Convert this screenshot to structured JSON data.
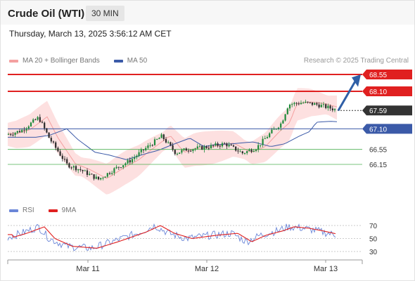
{
  "header": {
    "instrument": "Crude Oil (WTI)",
    "timeframe": "30 MIN"
  },
  "datetime": "Thursday, March 13, 2025 3:56:12 AM CET",
  "legend": {
    "ma20": "MA 20 + Bollinger Bands",
    "ma50": "MA 50",
    "ma20_color": "#f4a0a0",
    "ma50_color": "#3b5aa8"
  },
  "copyright": "Research © 2025 Trading Central",
  "levels": [
    {
      "label": "68.55",
      "value": 68.55,
      "style": "resistance"
    },
    {
      "label": "68.10",
      "value": 68.1,
      "style": "resistance"
    },
    {
      "label": "67.59",
      "value": 67.59,
      "style": "current"
    },
    {
      "label": "67.10",
      "value": 67.1,
      "style": "pivot"
    },
    {
      "label": "66.55",
      "value": 66.55,
      "style": "support"
    },
    {
      "label": "66.15",
      "value": 66.15,
      "style": "support"
    }
  ],
  "rsi_legend": {
    "rsi": "RSI",
    "ma": "9MA",
    "rsi_color": "#6a86d8",
    "ma_color": "#e02020"
  },
  "rsi_ticks": [
    "70",
    "50",
    "30"
  ],
  "x_labels": [
    "Mar 11",
    "Mar 12",
    "Mar 13"
  ],
  "colors": {
    "up": "#1e8a3a",
    "down": "#2a2a2a",
    "resistance": "#e02020",
    "pivot": "#3b5aa8",
    "support": "#4caf50",
    "band_fill": "#fde0e0"
  }
}
